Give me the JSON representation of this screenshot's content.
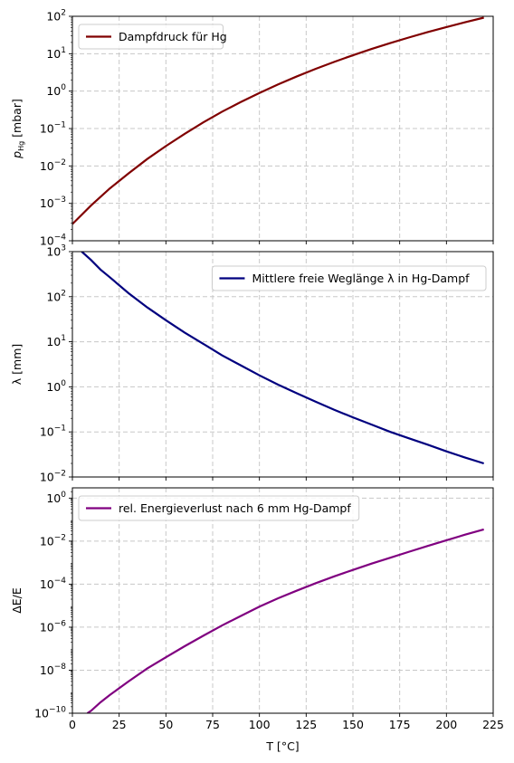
{
  "chart_data": [
    {
      "type": "line",
      "yscale": "log",
      "ylabel": "p_Hg [mbar]",
      "ylabel_main": "p",
      "ylabel_sub": "Hg",
      "ylabel_unit": "[mbar]",
      "xlim": [
        0,
        225
      ],
      "ylim": [
        0.0001,
        100
      ],
      "grid": true,
      "legend_position": "top-left",
      "x_ticks": [
        0,
        25,
        50,
        75,
        100,
        125,
        150,
        175,
        200,
        225
      ],
      "y_ticks": [
        {
          "value": 0.0001,
          "base": "10",
          "exp": "−4"
        },
        {
          "value": 0.001,
          "base": "10",
          "exp": "−3"
        },
        {
          "value": 0.01,
          "base": "10",
          "exp": "−2"
        },
        {
          "value": 0.1,
          "base": "10",
          "exp": "−1"
        },
        {
          "value": 1,
          "base": "10",
          "exp": "0"
        },
        {
          "value": 10,
          "base": "10",
          "exp": "1"
        },
        {
          "value": 100,
          "base": "10",
          "exp": "2"
        }
      ],
      "series": [
        {
          "name": "Dampfdruck für Hg",
          "color": "#800000",
          "x": [
            0,
            10,
            20,
            30,
            40,
            50,
            60,
            70,
            80,
            90,
            100,
            110,
            120,
            130,
            140,
            150,
            160,
            170,
            180,
            190,
            200,
            210,
            220
          ],
          "y": [
            0.00028,
            0.00088,
            0.0025,
            0.0063,
            0.0153,
            0.034,
            0.072,
            0.146,
            0.281,
            0.51,
            0.89,
            1.51,
            2.47,
            3.92,
            6.05,
            9.1,
            13.4,
            19.3,
            27.2,
            37.8,
            51.5,
            69.3,
            92.0
          ]
        }
      ]
    },
    {
      "type": "line",
      "yscale": "log",
      "ylabel": "λ [mm]",
      "xlim": [
        0,
        225
      ],
      "ylim": [
        0.01,
        1000
      ],
      "grid": true,
      "legend_position": "top-right",
      "x_ticks": [
        0,
        25,
        50,
        75,
        100,
        125,
        150,
        175,
        200,
        225
      ],
      "y_ticks": [
        {
          "value": 0.01,
          "base": "10",
          "exp": "−2"
        },
        {
          "value": 0.1,
          "base": "10",
          "exp": "−1"
        },
        {
          "value": 1,
          "base": "10",
          "exp": "0"
        },
        {
          "value": 10,
          "base": "10",
          "exp": "1"
        },
        {
          "value": 100,
          "base": "10",
          "exp": "2"
        },
        {
          "value": 1000,
          "base": "10",
          "exp": "3"
        }
      ],
      "series": [
        {
          "name": "Mittlere freie Weglänge λ in Hg-Dampf",
          "color": "#00007f",
          "x": [
            5,
            10,
            15,
            20,
            30,
            40,
            50,
            60,
            70,
            80,
            90,
            100,
            110,
            120,
            130,
            140,
            150,
            160,
            170,
            180,
            190,
            200,
            210,
            220
          ],
          "y": [
            1000,
            650,
            400,
            270,
            120,
            58,
            30,
            16,
            9.0,
            5.0,
            3.0,
            1.8,
            1.12,
            0.72,
            0.47,
            0.31,
            0.21,
            0.145,
            0.1,
            0.072,
            0.052,
            0.037,
            0.027,
            0.02
          ]
        }
      ]
    },
    {
      "type": "line",
      "yscale": "log",
      "xlabel": "T [°C]",
      "ylabel": "ΔE/E",
      "xlim": [
        0,
        225
      ],
      "ylim": [
        1e-10,
        3
      ],
      "grid": true,
      "legend_position": "top-left",
      "x_ticks": [
        0,
        25,
        50,
        75,
        100,
        125,
        150,
        175,
        200,
        225
      ],
      "y_ticks": [
        {
          "value": 1e-10,
          "base": "10",
          "exp": "−10"
        },
        {
          "value": 1e-08,
          "base": "10",
          "exp": "−8"
        },
        {
          "value": 1e-06,
          "base": "10",
          "exp": "−6"
        },
        {
          "value": 0.0001,
          "base": "10",
          "exp": "−4"
        },
        {
          "value": 0.01,
          "base": "10",
          "exp": "−2"
        },
        {
          "value": 1,
          "base": "10",
          "exp": "0"
        }
      ],
      "series": [
        {
          "name": "rel. Energieverlust nach 6 mm Hg-Dampf",
          "color": "#800080",
          "x": [
            8,
            10,
            15,
            20,
            30,
            40,
            50,
            60,
            70,
            80,
            90,
            100,
            110,
            120,
            130,
            140,
            150,
            160,
            170,
            180,
            190,
            200,
            210,
            220
          ],
          "y": [
            1e-10,
            1.3e-10,
            3.2e-10,
            7e-10,
            3e-09,
            1.2e-08,
            4e-08,
            1.3e-07,
            4e-07,
            1.2e-06,
            3.3e-06,
            9e-06,
            2.2e-05,
            5e-05,
            0.00011,
            0.00023,
            0.00046,
            0.0009,
            0.0017,
            0.0032,
            0.006,
            0.011,
            0.02,
            0.035
          ]
        }
      ]
    }
  ]
}
